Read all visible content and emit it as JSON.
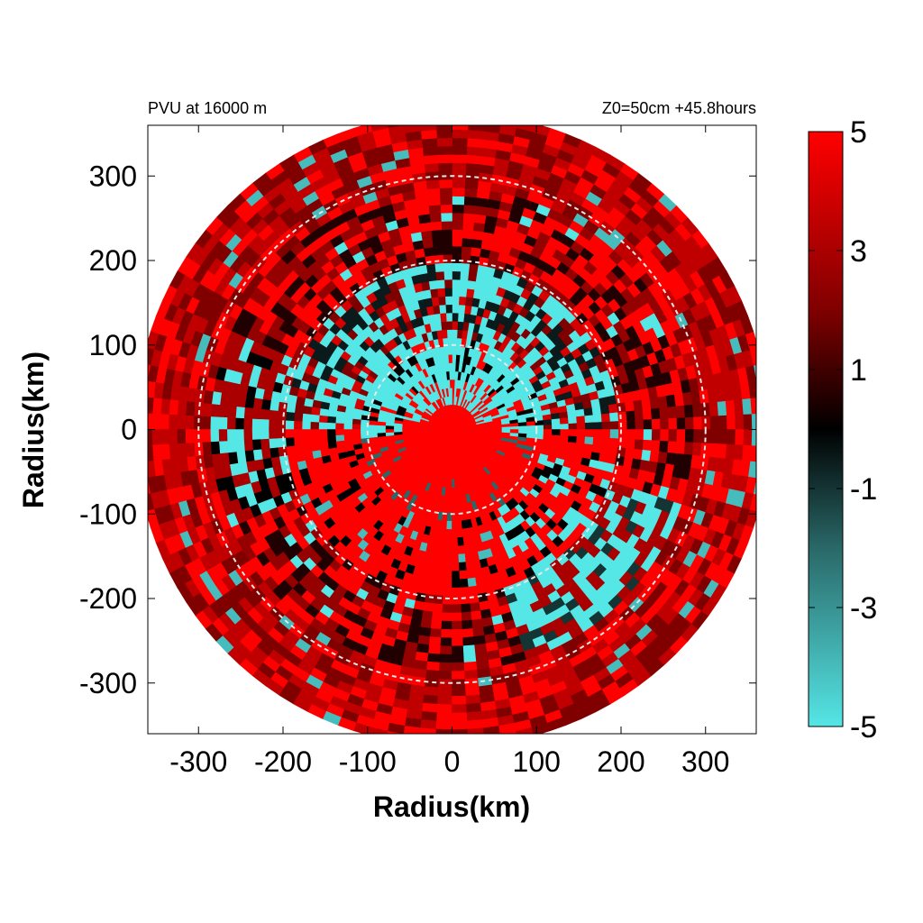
{
  "chart_data": {
    "type": "heatmap",
    "title_left": "PVU at 16000 m",
    "title_right": "Z0=50cm  +45.8hours",
    "xlabel": "Radius(km)",
    "ylabel": "Radius(km)",
    "xlim": [
      -360,
      360
    ],
    "ylim": [
      -360,
      360
    ],
    "xticks": [
      -300,
      -200,
      -100,
      0,
      100,
      200,
      300
    ],
    "yticks": [
      300,
      200,
      100,
      0,
      -100,
      -200,
      -300
    ],
    "domain_radius_km": 375,
    "reference_circles_km": [
      100,
      200,
      300
    ],
    "colorbar": {
      "min": -5,
      "max": 5,
      "ticks": [
        5,
        3,
        1,
        -1,
        -3,
        -5
      ],
      "colors": {
        "low": "#55e6e6",
        "mid_low": "#2a6868",
        "zero": "#000000",
        "mid_high": "#800000",
        "high": "#ff0000"
      }
    },
    "field_description_regions": [
      {
        "region": "core",
        "r_km": [
          0,
          90
        ],
        "value": 5
      },
      {
        "region": "cyan_ring_north",
        "r_km": [
          60,
          200
        ],
        "sector": "north",
        "value": -5
      },
      {
        "region": "outer_band",
        "r_km": [
          200,
          375
        ],
        "value": 3
      }
    ]
  }
}
